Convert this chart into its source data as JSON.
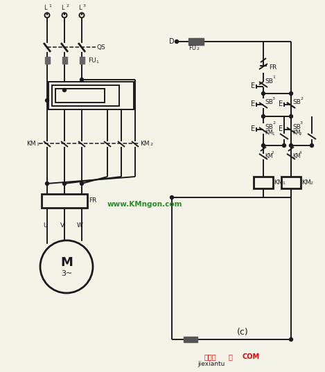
{
  "bg_color": "#f5f2e8",
  "line_color": "#1a1a1a",
  "lw": 1.4,
  "lw_thick": 2.0,
  "fig_w": 4.69,
  "fig_h": 5.37,
  "watermark": "www.KMngon.com",
  "wm_color": "#2a8a2a",
  "brand": "接线图",
  "brand_color": "#cc1111",
  "logo": "COM",
  "logo_color": "#cc1111",
  "jiexiantu": "jiexiantu"
}
